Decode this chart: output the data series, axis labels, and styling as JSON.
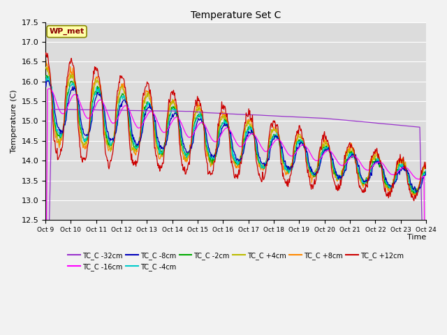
{
  "title": "Temperature Set C",
  "xlabel": "Time",
  "ylabel": "Temperature (C)",
  "ylim": [
    12.5,
    17.5
  ],
  "yticks": [
    12.5,
    13.0,
    13.5,
    14.0,
    14.5,
    15.0,
    15.5,
    16.0,
    16.5,
    17.0,
    17.5
  ],
  "xtick_labels": [
    "Oct 9",
    "Oct 10",
    "Oct 11",
    "Oct 12",
    "Oct 13",
    "Oct 14",
    "Oct 15",
    "Oct 16",
    "Oct 17",
    "Oct 18",
    "Oct 19",
    "Oct 20",
    "Oct 21",
    "Oct 22",
    "Oct 23",
    "Oct 24"
  ],
  "legend_entries": [
    {
      "label": "TC_C -32cm",
      "color": "#9933CC"
    },
    {
      "label": "TC_C -16cm",
      "color": "#FF00FF"
    },
    {
      "label": "TC_C -8cm",
      "color": "#0000BB"
    },
    {
      "label": "TC_C -4cm",
      "color": "#00CCCC"
    },
    {
      "label": "TC_C -2cm",
      "color": "#00AA00"
    },
    {
      "label": "TC_C +4cm",
      "color": "#BBBB00"
    },
    {
      "label": "TC_C +8cm",
      "color": "#FF8800"
    },
    {
      "label": "TC_C +12cm",
      "color": "#CC0000"
    }
  ],
  "wp_met_label": "WP_met",
  "wp_met_color": "#8B0000",
  "wp_met_bg": "#FFFFAA",
  "plot_bg_color": "#DCDCDC",
  "grid_color": "#FFFFFF",
  "n_points": 720
}
